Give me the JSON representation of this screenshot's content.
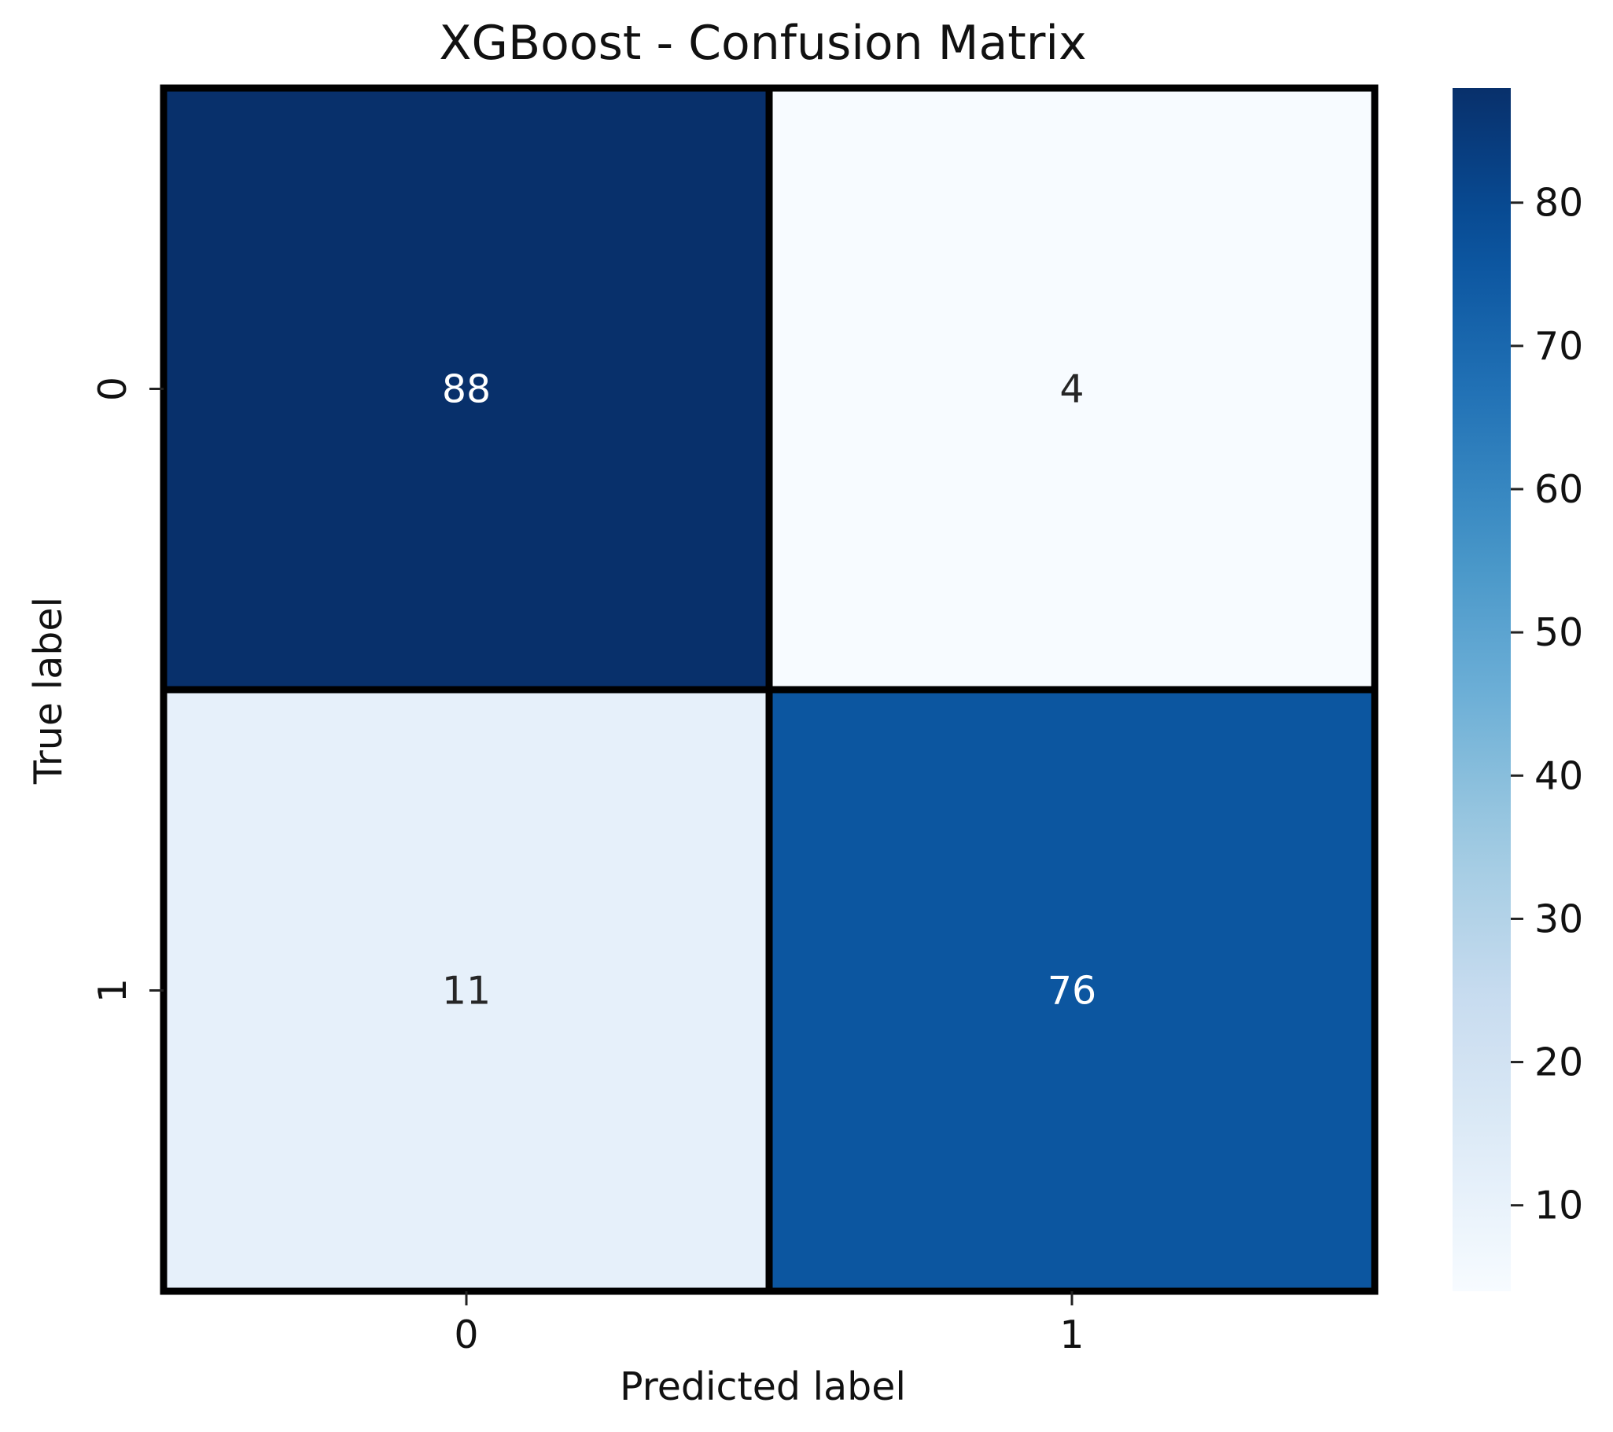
{
  "chart_data": {
    "type": "heatmap",
    "title": "XGBoost - Confusion Matrix",
    "xlabel": "Predicted label",
    "ylabel": "True label",
    "x_categories": [
      "0",
      "1"
    ],
    "y_categories": [
      "0",
      "1"
    ],
    "values": [
      [
        88,
        4
      ],
      [
        11,
        76
      ]
    ],
    "colormap": "Blues",
    "color_range": [
      4,
      88
    ],
    "colorbar_ticks": [
      10,
      20,
      30,
      40,
      50,
      60,
      70,
      80
    ],
    "colors": {
      "light_text": "#ffffff",
      "dark_text": "#262626",
      "grid_line": "#000000"
    }
  }
}
